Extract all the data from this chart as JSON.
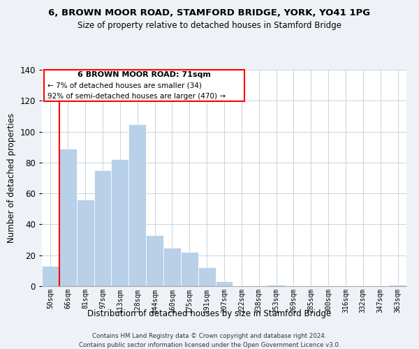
{
  "title1": "6, BROWN MOOR ROAD, STAMFORD BRIDGE, YORK, YO41 1PG",
  "title2": "Size of property relative to detached houses in Stamford Bridge",
  "xlabel": "Distribution of detached houses by size in Stamford Bridge",
  "ylabel": "Number of detached properties",
  "bar_color": "#b8d0e8",
  "categories": [
    "50sqm",
    "66sqm",
    "81sqm",
    "97sqm",
    "113sqm",
    "128sqm",
    "144sqm",
    "160sqm",
    "175sqm",
    "191sqm",
    "207sqm",
    "222sqm",
    "238sqm",
    "253sqm",
    "269sqm",
    "285sqm",
    "300sqm",
    "316sqm",
    "332sqm",
    "347sqm",
    "363sqm"
  ],
  "values": [
    13,
    89,
    56,
    75,
    82,
    105,
    33,
    25,
    22,
    12,
    3,
    0,
    0,
    1,
    0,
    0,
    0,
    0,
    0,
    0,
    1
  ],
  "ylim": [
    0,
    140
  ],
  "yticks": [
    0,
    20,
    40,
    60,
    80,
    100,
    120,
    140
  ],
  "red_line_x": 0.5,
  "annotation_title": "6 BROWN MOOR ROAD: 71sqm",
  "annotation_line1": "← 7% of detached houses are smaller (34)",
  "annotation_line2": "92% of semi-detached houses are larger (470) →",
  "footer1": "Contains HM Land Registry data © Crown copyright and database right 2024.",
  "footer2": "Contains public sector information licensed under the Open Government Licence v3.0.",
  "background_color": "#eef2f7",
  "plot_bg_color": "#ffffff",
  "grid_color": "#c8d4e0"
}
